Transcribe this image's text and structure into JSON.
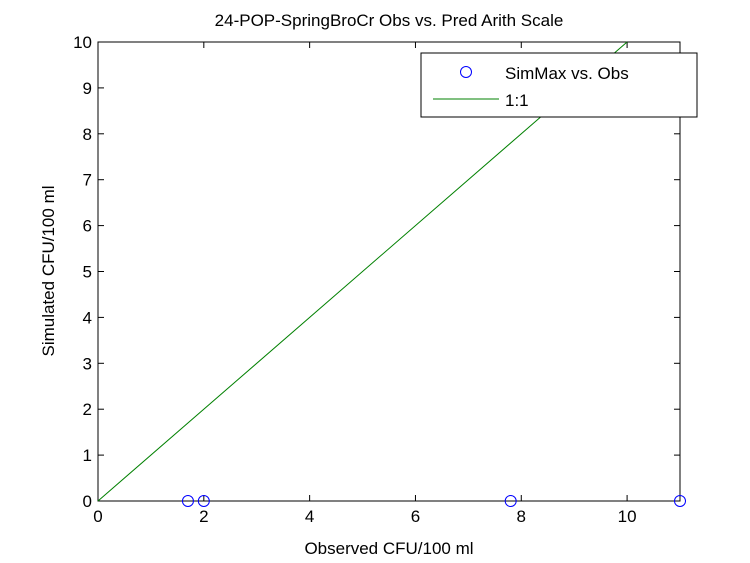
{
  "chart_data": {
    "type": "scatter",
    "title": "24-POP-SpringBroCr Obs vs. Pred Arith Scale",
    "xlabel": "Observed CFU/100 ml",
    "ylabel": "Simulated CFU/100 ml",
    "xlim": [
      0,
      11
    ],
    "ylim": [
      0,
      10
    ],
    "xticks": [
      0,
      2,
      4,
      6,
      8,
      10
    ],
    "yticks": [
      0,
      1,
      2,
      3,
      4,
      5,
      6,
      7,
      8,
      9,
      10
    ],
    "grid": false,
    "legend_placement": "top-right",
    "series": [
      {
        "name": "SimMax vs. Obs",
        "marker": "circle",
        "color": "#0000ff",
        "x": [
          1.7,
          2.0,
          7.8,
          11.0
        ],
        "y": [
          0,
          0,
          0,
          0
        ]
      },
      {
        "name": "1:1",
        "style": "line",
        "color": "#008000",
        "x": [
          0,
          10
        ],
        "y": [
          0,
          10
        ]
      }
    ]
  }
}
